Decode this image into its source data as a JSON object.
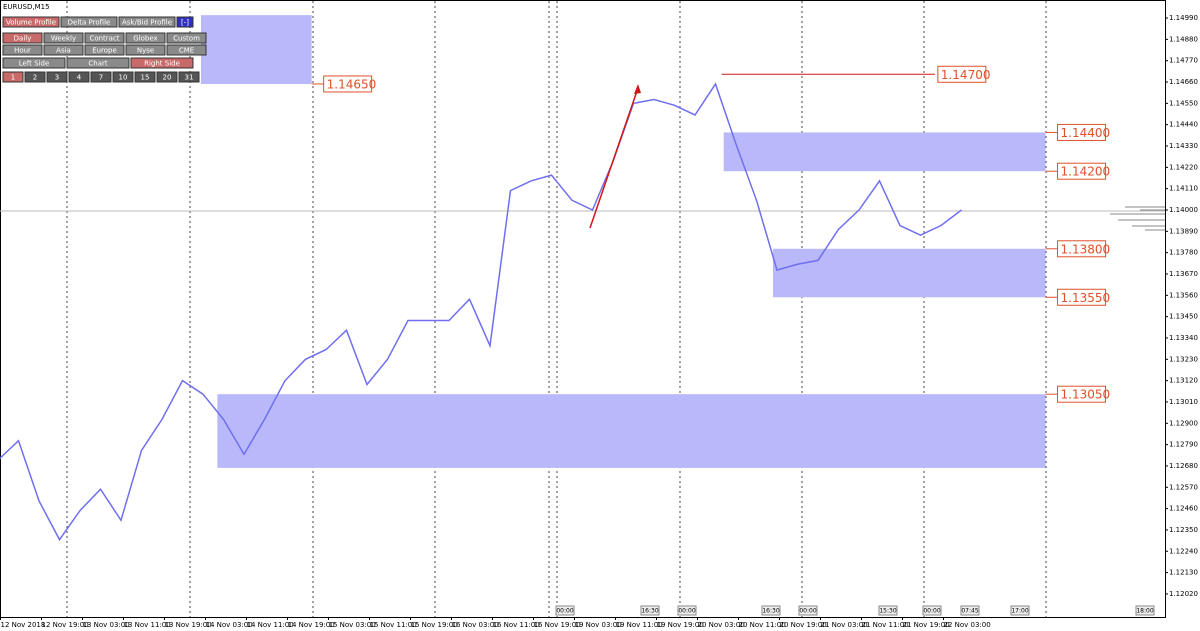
{
  "symbol": "EURUSD,M15",
  "toolbar": {
    "rows": [
      [
        "Volume Profile",
        "Delta Profile",
        "Ask/Bid Profile",
        "[-]"
      ],
      [
        "Daily",
        "Weekly",
        "Contract",
        "Globex",
        "Custom"
      ],
      [
        "Hour",
        "Asia",
        "Europe",
        "Nyse",
        "CME"
      ],
      [
        "Left Side",
        "Chart",
        "Right Side"
      ],
      [
        "1",
        "2",
        "3",
        "4",
        "7",
        "10",
        "15",
        "20",
        "31"
      ]
    ],
    "active": [
      [
        0
      ],
      [
        0
      ],
      [],
      [
        2
      ],
      [
        0
      ]
    ]
  },
  "time_tags": [
    "00:00",
    "16:30",
    "00:00",
    "16:30",
    "00:00",
    "15:30",
    "00:00",
    "07:45",
    "17:00",
    "18:00"
  ],
  "chart_data": {
    "type": "line",
    "categories": [
      null,
      "12 Nov 2018",
      null,
      "12 Nov 19:00",
      null,
      "13 Nov 03:00",
      null,
      "13 Nov 11:00",
      null,
      "13 Nov 19:00",
      null,
      "14 Nov 03:00",
      null,
      "14 Nov 11:00",
      null,
      "14 Nov 19:00",
      null,
      "15 Nov 03:00",
      null,
      "15 Nov 11:00",
      null,
      "15 Nov 19:00",
      null,
      "16 Nov 03:00",
      null,
      "16 Nov 11:00",
      null,
      "16 Nov 19:00",
      null,
      "19 Nov 03:00",
      null,
      "19 Nov 11:00",
      null,
      "19 Nov 19:00",
      null,
      "20 Nov 03:00",
      null,
      "20 Nov 11:00",
      null,
      "20 Nov 19:00",
      null,
      "21 Nov 03:00",
      null,
      "21 Nov 11:00",
      null,
      "21 Nov 19:00",
      null,
      "22 Nov 03:00"
    ],
    "series": [
      {
        "color": "#6f6ff0",
        "values": [
          1.1271,
          1.1281,
          1.125,
          1.123,
          1.1245,
          1.1256,
          1.124,
          1.1276,
          1.1292,
          1.1312,
          1.1305,
          1.1292,
          1.1274,
          1.1292,
          1.1312,
          1.1323,
          1.1328,
          1.1338,
          1.131,
          1.1323,
          1.1343,
          1.1343,
          1.1343,
          1.1354,
          1.133,
          1.141,
          1.1415,
          1.1418,
          1.1405,
          1.14,
          1.1425,
          1.1455,
          1.1457,
          1.1454,
          1.1449,
          1.1465,
          1.1434,
          1.1405,
          1.1369,
          1.1372,
          1.1374,
          1.139,
          1.14,
          1.1415,
          1.1392,
          1.1387,
          1.1392,
          1.14
        ]
      }
    ],
    "ylim": [
      1.11901,
      1.15083
    ],
    "yticks": [
      {
        "value": 1.1499,
        "label": "1.14990"
      },
      {
        "value": 1.1488,
        "label": "1.14880"
      },
      {
        "value": 1.1477,
        "label": "1.14770"
      },
      {
        "value": 1.1466,
        "label": "1.14660"
      },
      {
        "value": 1.1455,
        "label": "1.14550"
      },
      {
        "value": 1.1444,
        "label": "1.14440"
      },
      {
        "value": 1.1433,
        "label": "1.14330"
      },
      {
        "value": 1.1422,
        "label": "1.14220"
      },
      {
        "value": 1.1411,
        "label": "1.14110"
      },
      {
        "value": 1.14,
        "label": "1.14000"
      },
      {
        "value": 1.1389,
        "label": "1.13890"
      },
      {
        "value": 1.1378,
        "label": "1.13780"
      },
      {
        "value": 1.1367,
        "label": "1.13670"
      },
      {
        "value": 1.1356,
        "label": "1.13560"
      },
      {
        "value": 1.1345,
        "label": "1.13450"
      },
      {
        "value": 1.1334,
        "label": "1.13340"
      },
      {
        "value": 1.1323,
        "label": "1.13230"
      },
      {
        "value": 1.1312,
        "label": "1.13120"
      },
      {
        "value": 1.1301,
        "label": "1.13010"
      },
      {
        "value": 1.129,
        "label": "1.12900"
      },
      {
        "value": 1.1279,
        "label": "1.12790"
      },
      {
        "value": 1.1268,
        "label": "1.12680"
      },
      {
        "value": 1.1257,
        "label": "1.12570"
      },
      {
        "value": 1.1246,
        "label": "1.12460"
      },
      {
        "value": 1.1235,
        "label": "1.12350"
      },
      {
        "value": 1.1224,
        "label": "1.12240"
      },
      {
        "value": 1.1213,
        "label": "1.12130"
      },
      {
        "value": 1.1202,
        "label": "1.12020"
      }
    ],
    "zones": [
      {
        "top": 1.15005,
        "bottom": 1.1465,
        "start": 9.9,
        "end": 15.3,
        "color": "#b8b8fa",
        "labels": [
          {
            "value": 1.1465,
            "label": "1.14650"
          }
        ]
      },
      {
        "top": 1.144,
        "bottom": 1.142,
        "start": 35.4,
        "end": 51.1,
        "color": "#b8b8fa",
        "labels": [
          {
            "value": 1.144,
            "label": "1.14400"
          },
          {
            "value": 1.142,
            "label": "1.14200"
          }
        ]
      },
      {
        "top": 1.138,
        "bottom": 1.1355,
        "start": 37.8,
        "end": 51.1,
        "color": "#b8b8fa",
        "labels": [
          {
            "value": 1.138,
            "label": "1.13800"
          },
          {
            "value": 1.1355,
            "label": "1.13550"
          }
        ]
      },
      {
        "top": 1.1305,
        "bottom": 1.1267,
        "start": 10.7,
        "end": 51.1,
        "color": "#b8b8fa",
        "labels": [
          {
            "value": 1.1305,
            "label": "1.13050"
          }
        ]
      }
    ],
    "hline": {
      "value": 1.147,
      "label": "1.14700",
      "start": 35.3,
      "end": 45.7,
      "color": "#d01818"
    }
  }
}
